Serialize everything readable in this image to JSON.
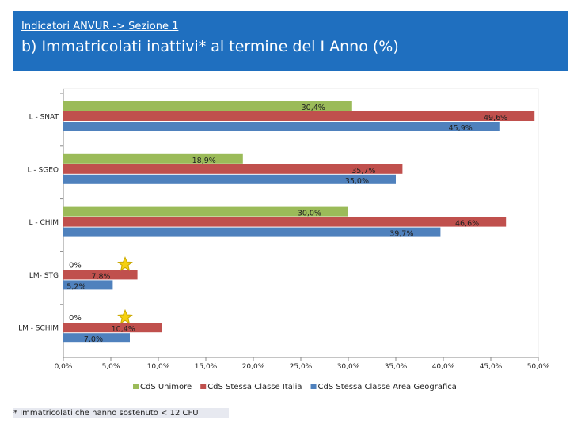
{
  "header": {
    "subtitle": "Indicatori ANVUR -> Sezione 1",
    "title": "b) Immatricolati inattivi* al termine del I Anno (%)"
  },
  "footnote": "* Immatricolati che hanno sostenuto < 12 CFU",
  "chart_data": {
    "type": "bar",
    "orientation": "horizontal",
    "categories": [
      "L - SNAT",
      "L - SGEO",
      "L - CHIM",
      "LM- STG",
      "LM - SCHIM"
    ],
    "series": [
      {
        "name": "CdS Unimore",
        "color": "#9bbb59",
        "values": [
          30.4,
          18.9,
          30.0,
          0,
          0
        ],
        "labels": [
          "30,4%",
          "18,9%",
          "30,0%",
          "0%",
          "0%"
        ]
      },
      {
        "name": "CdS Stessa Classe Italia",
        "color": "#c0504d",
        "values": [
          49.6,
          35.7,
          46.6,
          7.8,
          10.4
        ],
        "labels": [
          "49,6%",
          "35,7%",
          "46,6%",
          "7,8%",
          "10,4%"
        ]
      },
      {
        "name": "CdS Stessa Classe Area Geografica",
        "color": "#4f81bd",
        "values": [
          45.9,
          35.0,
          39.7,
          5.2,
          7.0
        ],
        "labels": [
          "45,9%",
          "35,0%",
          "39,7%",
          "5,2%",
          "7,0%"
        ]
      }
    ],
    "xlim": [
      0,
      50
    ],
    "xticks": [
      0,
      5,
      10,
      15,
      20,
      25,
      30,
      35,
      40,
      45,
      50
    ],
    "xtick_labels": [
      "0,0%",
      "5,0%",
      "10,0%",
      "15,0%",
      "20,0%",
      "25,0%",
      "30,0%",
      "35,0%",
      "40,0%",
      "45,0%",
      "50,0%"
    ],
    "legend_position": "bottom",
    "star_markers_on": [
      "LM- STG",
      "LM - SCHIM"
    ],
    "star_color": "#f5d010"
  }
}
